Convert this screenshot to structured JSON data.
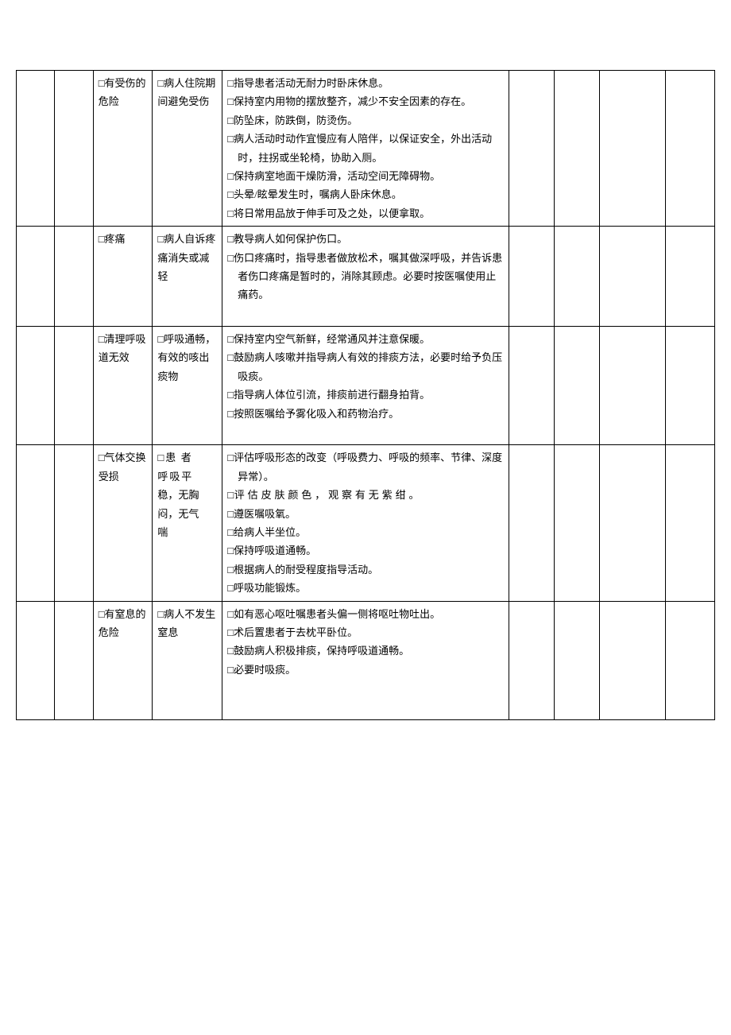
{
  "checkbox_prefix": "□",
  "rows": [
    {
      "diagnosis": "有受伤的危险",
      "goal": "病人住院期间避免受伤",
      "measures": [
        "指导患者活动无耐力时卧床休息。",
        "保持室内用物的摆放整齐，减少不安全因素的存在。",
        "防坠床，防跌倒，防烫伤。",
        "病人活动时动作宜慢应有人陪伴，以保证安全，外出活动时，拄拐或坐轮椅，协助入厕。",
        "保持病室地面干燥防滑，活动空间无障碍物。",
        "头晕/眩晕发生时，嘱病人卧床休息。",
        "将日常用品放于伸手可及之处，以便拿取。"
      ]
    },
    {
      "diagnosis": "疼痛",
      "goal": "病人自诉疼痛消失或减轻",
      "measures": [
        "教导病人如何保护伤口。",
        "伤口疼痛时，指导患者做放松术，嘱其做深呼吸，并告诉患者伤口疼痛是暂时的，消除其顾虑。必要时按医嘱使用止痛药。"
      ],
      "pad_bottom": true
    },
    {
      "diagnosis": "清理呼吸道无效",
      "goal": "呼吸通畅，有效的咳出痰物",
      "measures": [
        "保持室内空气新鲜，经常通风并注意保暖。",
        "鼓励病人咳嗽并指导病人有效的排痰方法，必要时给予负压吸痰。",
        "指导病人体位引流，排痰前进行翻身拍背。",
        "按照医嘱给予雾化吸入和药物治疗。"
      ],
      "pad_bottom": true
    },
    {
      "diagnosis": "气体交换受损",
      "goal": "患者呼吸平稳，无胸闷，无气喘",
      "goal_style": "spaced",
      "measures": [
        "评估呼吸形态的改变（呼吸费力、呼吸的频率、节律、深度异常）。",
        "评估皮肤颜色，观察有无紫绀。",
        "遵医嘱吸氧。",
        "给病人半坐位。",
        "保持呼吸道通畅。",
        "根据病人的耐受程度指导活动。",
        "呼吸功能锻炼。"
      ],
      "m1_spaced": true
    },
    {
      "diagnosis": "有窒息的危险",
      "goal": "病人不发生窒息",
      "measures": [
        "如有恶心呕吐嘱患者头偏一侧将呕吐物吐出。",
        "术后置患者于去枕平卧位。",
        "鼓励病人积极排痰，保持呼吸道通畅。",
        "必要时吸痰。"
      ],
      "pad_bottom": true,
      "pad_extra": true
    }
  ]
}
